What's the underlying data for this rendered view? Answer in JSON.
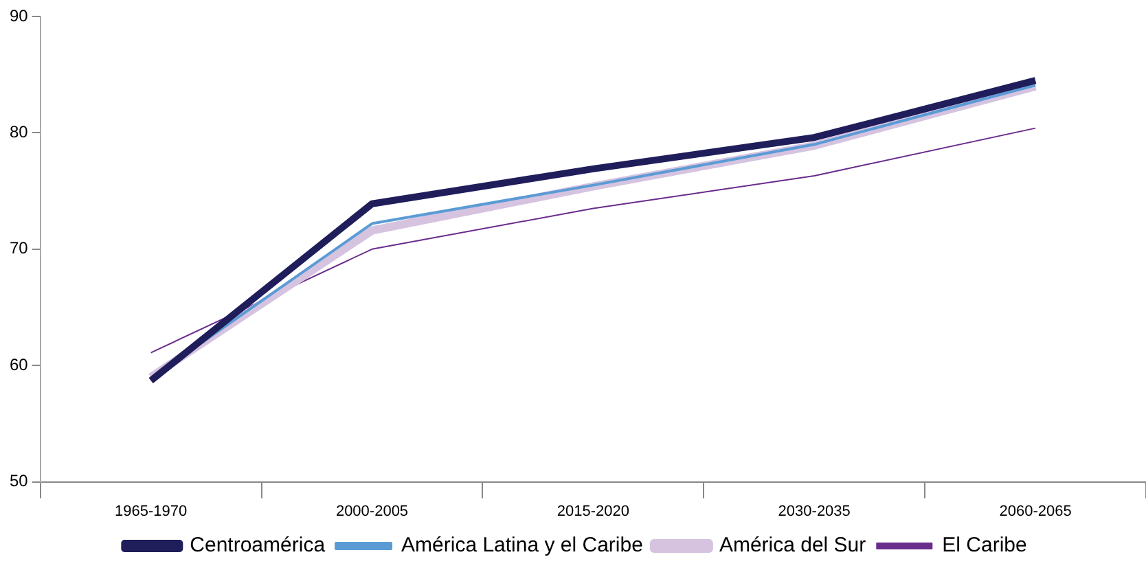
{
  "chart_data": {
    "type": "line",
    "categories": [
      "1965-1970",
      "2000-2005",
      "2015-2020",
      "2030-2035",
      "2060-2065"
    ],
    "series": [
      {
        "name": "Centroamérica",
        "color": "#1f1d5a",
        "values": [
          58.7,
          73.9,
          76.9,
          79.6,
          84.5
        ]
      },
      {
        "name": "América Latina y el Caribe",
        "color": "#5b9bd5",
        "values": [
          58.9,
          72.2,
          75.5,
          79.0,
          84.1
        ]
      },
      {
        "name": "América del Sur",
        "color": "#d5c3e0",
        "values": [
          59.0,
          71.6,
          75.4,
          78.9,
          84.0
        ]
      },
      {
        "name": "El Caribe",
        "color": "#6a2c8c",
        "values": [
          61.1,
          70.0,
          73.5,
          76.3,
          80.4
        ]
      }
    ],
    "ylim": [
      50,
      90
    ],
    "yticks": [
      50,
      60,
      70,
      80,
      90
    ],
    "grid": false,
    "legend": "bottom",
    "marker": "none",
    "line_style": "solid"
  }
}
